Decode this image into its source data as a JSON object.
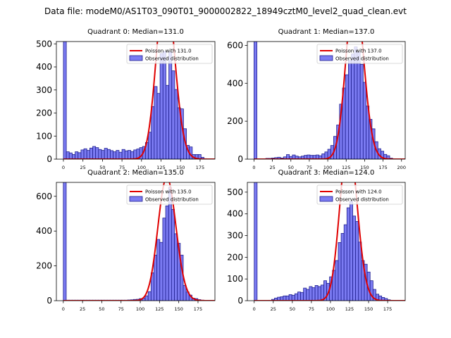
{
  "suptitle": "Data file: modeM0/AS1T03_090T01_9000002822_18949cztM0_level2_quad_clean.evt",
  "colors": {
    "bar_fill": "#7b7bf2",
    "bar_edge": "#1f1f8f",
    "poisson_line": "#e00000",
    "axes": "#000000"
  },
  "chart_data": [
    {
      "type": "bar",
      "title": "Quadrant 0: Median=131.0",
      "median": 131.0,
      "xlim": [
        -9,
        194
      ],
      "ylim": [
        0,
        510
      ],
      "xticks": [
        0,
        25,
        50,
        75,
        100,
        125,
        150,
        175
      ],
      "yticks": [
        0,
        100,
        200,
        300,
        400,
        500
      ],
      "bin_width": 3.75,
      "bins": [
        [
          0,
          600
        ],
        [
          3.75,
          32
        ],
        [
          7.5,
          27
        ],
        [
          11.25,
          20
        ],
        [
          15,
          32
        ],
        [
          18.75,
          28
        ],
        [
          22.5,
          40
        ],
        [
          26.25,
          45
        ],
        [
          30,
          38
        ],
        [
          33.75,
          48
        ],
        [
          37.5,
          55
        ],
        [
          41.25,
          50
        ],
        [
          45,
          42
        ],
        [
          48.75,
          38
        ],
        [
          52.5,
          47
        ],
        [
          56.25,
          42
        ],
        [
          60,
          37
        ],
        [
          63.75,
          32
        ],
        [
          67.5,
          38
        ],
        [
          71.25,
          30
        ],
        [
          75,
          42
        ],
        [
          78.75,
          36
        ],
        [
          82.5,
          38
        ],
        [
          86.25,
          33
        ],
        [
          90,
          40
        ],
        [
          93.75,
          44
        ],
        [
          97.5,
          50
        ],
        [
          101.25,
          55
        ],
        [
          105,
          72
        ],
        [
          108.75,
          117
        ],
        [
          112.5,
          228
        ],
        [
          116.25,
          315
        ],
        [
          120,
          285
        ],
        [
          123.75,
          458
        ],
        [
          127.5,
          467
        ],
        [
          131.25,
          320
        ],
        [
          135,
          465
        ],
        [
          138.75,
          383
        ],
        [
          142.5,
          302
        ],
        [
          146.25,
          223
        ],
        [
          150,
          218
        ],
        [
          153.75,
          132
        ],
        [
          157.5,
          60
        ],
        [
          161.25,
          53
        ],
        [
          165,
          20
        ],
        [
          168.75,
          20
        ],
        [
          172.5,
          20
        ],
        [
          176.25,
          8
        ],
        [
          180,
          2
        ]
      ],
      "legend": [
        "Poisson with 131.0",
        "Observed distribution"
      ]
    },
    {
      "type": "bar",
      "title": "Quadrant 1: Median=137.0",
      "median": 137.0,
      "xlim": [
        -9,
        205
      ],
      "ylim": [
        0,
        620
      ],
      "xticks": [
        0,
        25,
        50,
        75,
        100,
        125,
        150,
        175,
        200
      ],
      "yticks": [
        0,
        200,
        400,
        600
      ],
      "bin_width": 4,
      "bins": [
        [
          0,
          700
        ],
        [
          4,
          2
        ],
        [
          8,
          2
        ],
        [
          12,
          2
        ],
        [
          16,
          4
        ],
        [
          20,
          4
        ],
        [
          24,
          6
        ],
        [
          28,
          8
        ],
        [
          32,
          10
        ],
        [
          36,
          6
        ],
        [
          40,
          12
        ],
        [
          44,
          24
        ],
        [
          48,
          14
        ],
        [
          52,
          22
        ],
        [
          56,
          16
        ],
        [
          60,
          12
        ],
        [
          64,
          16
        ],
        [
          68,
          20
        ],
        [
          72,
          22
        ],
        [
          76,
          20
        ],
        [
          80,
          20
        ],
        [
          84,
          22
        ],
        [
          88,
          18
        ],
        [
          92,
          28
        ],
        [
          96,
          38
        ],
        [
          100,
          52
        ],
        [
          104,
          72
        ],
        [
          108,
          120
        ],
        [
          112,
          180
        ],
        [
          116,
          290
        ],
        [
          120,
          375
        ],
        [
          124,
          445
        ],
        [
          128,
          520
        ],
        [
          132,
          555
        ],
        [
          136,
          592
        ],
        [
          140,
          565
        ],
        [
          144,
          500
        ],
        [
          148,
          405
        ],
        [
          152,
          280
        ],
        [
          156,
          210
        ],
        [
          160,
          160
        ],
        [
          164,
          92
        ],
        [
          168,
          55
        ],
        [
          172,
          42
        ],
        [
          176,
          25
        ],
        [
          180,
          18
        ],
        [
          184,
          5
        ],
        [
          188,
          2
        ]
      ],
      "legend": [
        "Poisson with 137.0",
        "Observed distribution"
      ]
    },
    {
      "type": "bar",
      "title": "Quadrant 2: Median=135.0",
      "median": 135.0,
      "xlim": [
        -9,
        197
      ],
      "ylim": [
        0,
        680
      ],
      "xticks": [
        0,
        25,
        50,
        75,
        100,
        125,
        150,
        175
      ],
      "yticks": [
        0,
        200,
        400,
        600
      ],
      "bin_width": 3.8,
      "bins": [
        [
          0,
          750
        ],
        [
          3.8,
          3
        ],
        [
          7.6,
          3
        ],
        [
          11.4,
          3
        ],
        [
          15.2,
          3
        ],
        [
          19,
          3
        ],
        [
          22.8,
          3
        ],
        [
          26.6,
          3
        ],
        [
          30.4,
          3
        ],
        [
          34.2,
          3
        ],
        [
          38,
          3
        ],
        [
          41.8,
          3
        ],
        [
          45.6,
          3
        ],
        [
          49.4,
          3
        ],
        [
          53.2,
          3
        ],
        [
          57,
          3
        ],
        [
          60.8,
          3
        ],
        [
          64.6,
          3
        ],
        [
          68.4,
          3
        ],
        [
          72.2,
          3
        ],
        [
          76,
          3
        ],
        [
          79.8,
          3
        ],
        [
          83.6,
          4
        ],
        [
          87.4,
          5
        ],
        [
          91.2,
          7
        ],
        [
          95,
          8
        ],
        [
          98.8,
          12
        ],
        [
          102.6,
          15
        ],
        [
          106.4,
          28
        ],
        [
          110.2,
          52
        ],
        [
          114,
          160
        ],
        [
          117.8,
          262
        ],
        [
          121.6,
          352
        ],
        [
          125.4,
          335
        ],
        [
          129.2,
          475
        ],
        [
          133,
          545
        ],
        [
          136.8,
          652
        ],
        [
          140.6,
          525
        ],
        [
          144.4,
          385
        ],
        [
          148.2,
          330
        ],
        [
          152,
          262
        ],
        [
          155.8,
          88
        ],
        [
          159.6,
          50
        ],
        [
          163.4,
          32
        ],
        [
          167.2,
          14
        ],
        [
          171,
          12
        ],
        [
          174.8,
          6
        ],
        [
          178.6,
          3
        ],
        [
          182.4,
          2
        ]
      ],
      "legend": [
        "Poisson with 135.0",
        "Observed distribution"
      ]
    },
    {
      "type": "bar",
      "title": "Quadrant 3: Median=124.0",
      "median": 124.0,
      "xlim": [
        -9,
        198
      ],
      "ylim": [
        0,
        545
      ],
      "xticks": [
        0,
        25,
        50,
        75,
        100,
        125,
        150,
        175
      ],
      "yticks": [
        0,
        100,
        200,
        300,
        400,
        500
      ],
      "bin_width": 3.8,
      "bins": [
        [
          0,
          600
        ],
        [
          3.8,
          0
        ],
        [
          7.6,
          0
        ],
        [
          11.4,
          0
        ],
        [
          15.2,
          0
        ],
        [
          19,
          2
        ],
        [
          22.8,
          6
        ],
        [
          26.6,
          12
        ],
        [
          30.4,
          16
        ],
        [
          34.2,
          18
        ],
        [
          38,
          22
        ],
        [
          41.8,
          22
        ],
        [
          45.6,
          28
        ],
        [
          49.4,
          25
        ],
        [
          53.2,
          32
        ],
        [
          57,
          40
        ],
        [
          60.8,
          38
        ],
        [
          64.6,
          58
        ],
        [
          68.4,
          52
        ],
        [
          72.2,
          65
        ],
        [
          76,
          60
        ],
        [
          79.8,
          70
        ],
        [
          83.6,
          65
        ],
        [
          87.4,
          72
        ],
        [
          91.2,
          92
        ],
        [
          95,
          80
        ],
        [
          98.8,
          110
        ],
        [
          102.6,
          140
        ],
        [
          106.4,
          185
        ],
        [
          110.2,
          268
        ],
        [
          114,
          310
        ],
        [
          117.8,
          350
        ],
        [
          121.6,
          428
        ],
        [
          125.4,
          458
        ],
        [
          129.2,
          390
        ],
        [
          133,
          365
        ],
        [
          136.8,
          270
        ],
        [
          140.6,
          185
        ],
        [
          144.4,
          168
        ],
        [
          148.2,
          132
        ],
        [
          152,
          92
        ],
        [
          155.8,
          52
        ],
        [
          159.6,
          30
        ],
        [
          163.4,
          22
        ],
        [
          167.2,
          15
        ],
        [
          171,
          10
        ],
        [
          174.8,
          4
        ],
        [
          178.6,
          2
        ]
      ],
      "legend": [
        "Poisson with 124.0",
        "Observed distribution"
      ]
    }
  ]
}
